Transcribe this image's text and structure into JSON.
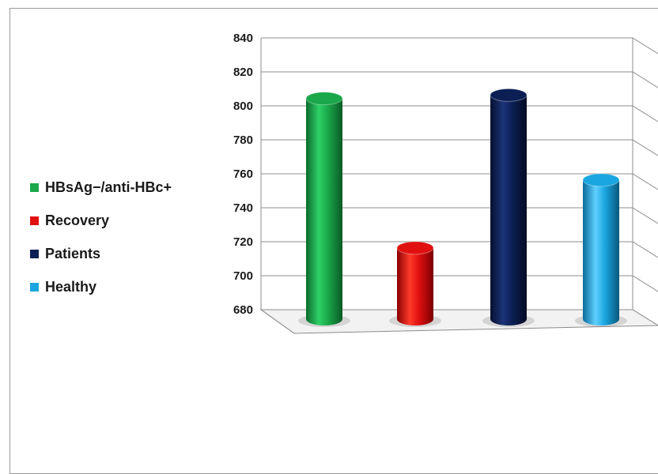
{
  "chart_data": {
    "type": "bar",
    "style": "3d-cylinder",
    "categories": [
      "HBsAg−/anti-HBc+",
      "Recovery",
      "Patients",
      "Healthy"
    ],
    "values": [
      809,
      721,
      811,
      761
    ],
    "colors": [
      "#1aa84a",
      "#e01010",
      "#0b1f55",
      "#1aa6e0"
    ],
    "ylim": [
      680,
      840
    ],
    "yticks": [
      680,
      700,
      720,
      740,
      760,
      780,
      800,
      820,
      840
    ],
    "grid": true,
    "legend": "left",
    "legend_entries": [
      "HBsAg−/anti-HBc+",
      "Recovery",
      "Patients",
      "Healthy"
    ],
    "title": "",
    "xlabel": "",
    "ylabel": ""
  }
}
